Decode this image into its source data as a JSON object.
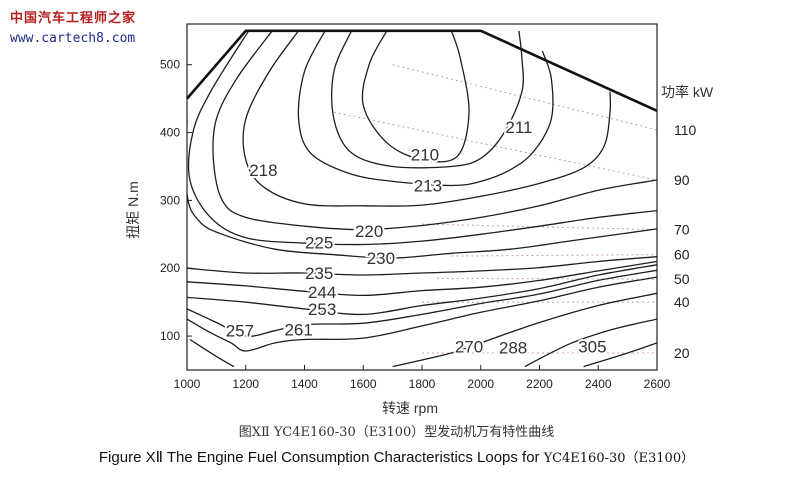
{
  "watermark": {
    "title": "中国汽车工程师之家",
    "url": "www.cartech8.com"
  },
  "caption": {
    "chinese": "图XⅡ YC4E160-30（E3100）型发动机万有特性曲线",
    "english_lead": "Figure  XⅡ  The Engine Fuel Consumption Characteristics Loops for ",
    "english_tail": "YC4E160-30（E3100）"
  },
  "chart_data": {
    "type": "contour",
    "xlabel": "转速 rpm",
    "ylabel": "扭矩 N.m",
    "right_label": "功率 kW",
    "xlim": [
      1000,
      2600
    ],
    "ylim": [
      50,
      560
    ],
    "x_ticks": [
      1000,
      1200,
      1400,
      1600,
      1800,
      2000,
      2200,
      2400,
      2600
    ],
    "y_ticks": [
      100,
      200,
      300,
      400,
      500
    ],
    "power_ticks": [
      20,
      40,
      50,
      60,
      70,
      90,
      110
    ],
    "max_torque_curve": {
      "x": [
        1000,
        1200,
        2000,
        2600
      ],
      "y": [
        450,
        550,
        550,
        432
      ]
    },
    "contours": [
      {
        "label": "210",
        "label_at": [
          1810,
          368
        ],
        "points": [
          [
            1680,
            550
          ],
          [
            1620,
            500
          ],
          [
            1600,
            440
          ],
          [
            1680,
            385
          ],
          [
            1800,
            360
          ],
          [
            1920,
            365
          ],
          [
            1960,
            430
          ],
          [
            1930,
            510
          ],
          [
            1900,
            550
          ]
        ]
      },
      {
        "label": "211",
        "label_at": [
          2130,
          408
        ],
        "points": [
          [
            1560,
            550
          ],
          [
            1500,
            490
          ],
          [
            1500,
            420
          ],
          [
            1560,
            370
          ],
          [
            1700,
            350
          ],
          [
            1900,
            350
          ],
          [
            2000,
            362
          ],
          [
            2080,
            400
          ],
          [
            2140,
            460
          ],
          [
            2140,
            510
          ],
          [
            2130,
            550
          ]
        ]
      },
      {
        "label": "213",
        "label_at": [
          1820,
          322
        ],
        "points": [
          [
            1470,
            550
          ],
          [
            1400,
            490
          ],
          [
            1380,
            420
          ],
          [
            1420,
            370
          ],
          [
            1550,
            340
          ],
          [
            1700,
            328
          ],
          [
            1900,
            322
          ],
          [
            2000,
            328
          ],
          [
            2100,
            345
          ],
          [
            2180,
            372
          ],
          [
            2240,
            420
          ],
          [
            2240,
            480
          ],
          [
            2210,
            520
          ]
        ]
      },
      {
        "label": "218",
        "label_at": [
          1260,
          345
        ],
        "points": [
          [
            1380,
            550
          ],
          [
            1280,
            490
          ],
          [
            1200,
            420
          ],
          [
            1200,
            360
          ],
          [
            1260,
            320
          ],
          [
            1400,
            295
          ],
          [
            1600,
            292
          ],
          [
            1800,
            293
          ],
          [
            2000,
            306
          ],
          [
            2200,
            325
          ],
          [
            2350,
            348
          ],
          [
            2420,
            380
          ],
          [
            2440,
            430
          ],
          [
            2440,
            460
          ]
        ]
      },
      {
        "label": "220",
        "label_at": [
          1620,
          255
        ],
        "points": [
          [
            1290,
            550
          ],
          [
            1170,
            480
          ],
          [
            1100,
            420
          ],
          [
            1090,
            360
          ],
          [
            1120,
            300
          ],
          [
            1200,
            275
          ],
          [
            1400,
            262
          ],
          [
            1600,
            257
          ],
          [
            1800,
            263
          ],
          [
            2000,
            275
          ],
          [
            2200,
            292
          ],
          [
            2400,
            315
          ],
          [
            2600,
            330
          ]
        ]
      },
      {
        "label": "225",
        "label_at": [
          1450,
          238
        ],
        "points": [
          [
            1210,
            550
          ],
          [
            1080,
            460
          ],
          [
            1020,
            400
          ],
          [
            1010,
            330
          ],
          [
            1080,
            275
          ],
          [
            1200,
            245
          ],
          [
            1400,
            237
          ],
          [
            1600,
            235
          ],
          [
            1800,
            240
          ],
          [
            2000,
            250
          ],
          [
            2200,
            262
          ],
          [
            2400,
            275
          ],
          [
            2600,
            285
          ]
        ]
      },
      {
        "label": "230",
        "label_at": [
          1660,
          215
        ],
        "points": [
          [
            1000,
            420
          ],
          [
            1000,
            310
          ],
          [
            1040,
            270
          ],
          [
            1120,
            250
          ],
          [
            1300,
            228
          ],
          [
            1500,
            220
          ],
          [
            1700,
            215
          ],
          [
            1900,
            222
          ],
          [
            2100,
            228
          ],
          [
            2300,
            240
          ],
          [
            2500,
            252
          ],
          [
            2600,
            258
          ]
        ]
      },
      {
        "label": "235",
        "label_at": [
          1450,
          193
        ],
        "points": [
          [
            1000,
            200
          ],
          [
            1200,
            193
          ],
          [
            1400,
            193
          ],
          [
            1600,
            190
          ],
          [
            1800,
            193
          ],
          [
            2000,
            196
          ],
          [
            2200,
            201
          ],
          [
            2400,
            210
          ],
          [
            2600,
            217
          ]
        ]
      },
      {
        "label": "244",
        "label_at": [
          1460,
          165
        ],
        "points": [
          [
            1000,
            180
          ],
          [
            1200,
            174
          ],
          [
            1400,
            166
          ],
          [
            1600,
            160
          ],
          [
            1800,
            167
          ],
          [
            2000,
            172
          ],
          [
            2200,
            182
          ],
          [
            2400,
            196
          ],
          [
            2600,
            210
          ]
        ]
      },
      {
        "label": "253",
        "label_at": [
          1460,
          140
        ],
        "points": [
          [
            1000,
            157
          ],
          [
            1200,
            150
          ],
          [
            1400,
            140
          ],
          [
            1600,
            132
          ],
          [
            1800,
            145
          ],
          [
            2000,
            156
          ],
          [
            2200,
            170
          ],
          [
            2400,
            190
          ],
          [
            2600,
            205
          ]
        ]
      },
      {
        "label": "257",
        "label_at": [
          1180,
          108
        ],
        "points": [
          [
            1000,
            140
          ],
          [
            1100,
            120
          ],
          [
            1200,
            100
          ],
          [
            1300,
            108
          ],
          [
            1400,
            117
          ],
          [
            1600,
            119
          ],
          [
            1800,
            132
          ],
          [
            2000,
            148
          ],
          [
            2200,
            162
          ],
          [
            2400,
            182
          ],
          [
            2600,
            197
          ]
        ]
      },
      {
        "label": "261",
        "label_at": [
          1380,
          110
        ],
        "points": [
          [
            1000,
            125
          ],
          [
            1080,
            105
          ],
          [
            1150,
            90
          ],
          [
            1200,
            78
          ],
          [
            1300,
            90
          ],
          [
            1400,
            95
          ],
          [
            1600,
            97
          ],
          [
            1800,
            115
          ],
          [
            2000,
            135
          ],
          [
            2200,
            152
          ],
          [
            2400,
            172
          ],
          [
            2600,
            187
          ]
        ]
      },
      {
        "label": "270",
        "label_at": [
          1960,
          85
        ],
        "points": [
          [
            1010,
            95
          ],
          [
            1100,
            70
          ],
          [
            1160,
            55
          ]
        ]
      },
      {
        "label": "",
        "label_at": null,
        "points": [
          [
            1700,
            55
          ],
          [
            1900,
            75
          ],
          [
            2000,
            90
          ],
          [
            2200,
            120
          ],
          [
            2400,
            145
          ],
          [
            2600,
            163
          ]
        ]
      },
      {
        "label": "288",
        "label_at": [
          2110,
          83
        ],
        "points": [
          [
            2150,
            55
          ],
          [
            2300,
            88
          ],
          [
            2450,
            110
          ],
          [
            2600,
            125
          ]
        ]
      },
      {
        "label": "305",
        "label_at": [
          2380,
          85
        ],
        "points": [
          [
            2350,
            55
          ],
          [
            2500,
            75
          ],
          [
            2600,
            90
          ]
        ]
      }
    ],
    "power_lines": [
      {
        "kW": 20,
        "points": [
          [
            1800,
            75
          ],
          [
            2600,
            75
          ]
        ]
      },
      {
        "kW": 40,
        "points": [
          [
            1800,
            150
          ],
          [
            2600,
            150
          ]
        ]
      },
      {
        "kW": 50,
        "points": [
          [
            1850,
            185
          ],
          [
            2600,
            184
          ]
        ]
      },
      {
        "kW": 60,
        "points": [
          [
            1900,
            218
          ],
          [
            2600,
            220
          ]
        ]
      },
      {
        "kW": 70,
        "points": [
          [
            1800,
            265
          ],
          [
            2600,
            257
          ]
        ]
      },
      {
        "kW": 90,
        "points": [
          [
            1500,
            430
          ],
          [
            2600,
            330
          ]
        ]
      },
      {
        "kW": 110,
        "points": [
          [
            1700,
            500
          ],
          [
            2600,
            404
          ]
        ]
      }
    ]
  }
}
